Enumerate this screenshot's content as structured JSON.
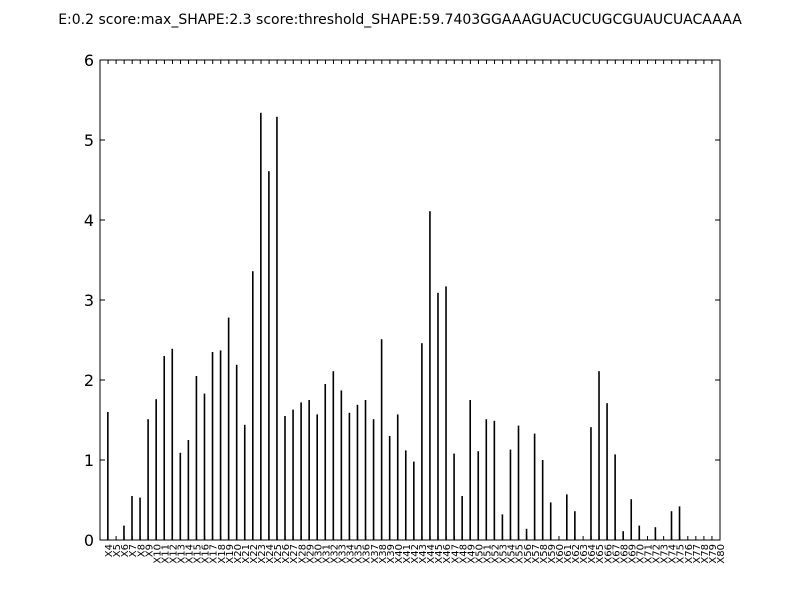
{
  "chart_data": {
    "type": "bar",
    "title": "E:0.2 score:max_SHAPE:2.3 score:threshold_SHAPE:59.7403GGAAAGUACUCUGCGUAUCUACAAAA",
    "xlabel": "",
    "ylabel": "",
    "ylim": [
      0,
      6
    ],
    "yticks": [
      0,
      1,
      2,
      3,
      4,
      5,
      6
    ],
    "grid": false,
    "categories": [
      "X4",
      "X5",
      "X6",
      "X7",
      "X8",
      "X9",
      "X10",
      "X11",
      "X12",
      "X13",
      "X14",
      "X15",
      "X16",
      "X17",
      "X18",
      "X19",
      "X20",
      "X21",
      "X22",
      "X23",
      "X24",
      "X25",
      "X26",
      "X27",
      "X28",
      "X29",
      "X30",
      "X31",
      "X32",
      "X33",
      "X34",
      "X35",
      "X36",
      "X37",
      "X38",
      "X39",
      "X40",
      "X41",
      "X42",
      "X43",
      "X44",
      "X45",
      "X46",
      "X47",
      "X48",
      "X49",
      "X50",
      "X51",
      "X52",
      "X53",
      "X54",
      "X55",
      "X56",
      "X57",
      "X58",
      "X59",
      "X60",
      "X61",
      "X62",
      "X63",
      "X64",
      "X65",
      "X66",
      "X67",
      "X68",
      "X69",
      "X70",
      "X71",
      "X72",
      "X73",
      "X74",
      "X75",
      "X76",
      "X77",
      "X78",
      "X79",
      "X80"
    ],
    "values": [
      1.6,
      0.0,
      0.18,
      0.55,
      0.53,
      1.51,
      1.76,
      2.3,
      2.39,
      1.09,
      1.25,
      2.05,
      1.83,
      2.35,
      2.37,
      2.78,
      2.19,
      1.44,
      3.36,
      5.34,
      4.61,
      5.29,
      1.55,
      1.63,
      1.72,
      1.75,
      1.57,
      1.95,
      2.11,
      1.87,
      1.59,
      1.69,
      1.75,
      1.51,
      2.51,
      1.3,
      1.57,
      1.12,
      0.98,
      2.46,
      4.11,
      3.09,
      3.17,
      1.08,
      0.55,
      1.75,
      1.11,
      1.51,
      1.49,
      0.32,
      1.13,
      1.43,
      0.14,
      1.33,
      1.0,
      0.47,
      0.0,
      0.57,
      0.36,
      0.0,
      1.41,
      2.11,
      1.71,
      1.07,
      0.11,
      0.51,
      0.18,
      0.0,
      0.16,
      0.0,
      0.36,
      0.42,
      0.0,
      0.0,
      0.0,
      0.0,
      0.0
    ],
    "bar_color": "#000000"
  }
}
